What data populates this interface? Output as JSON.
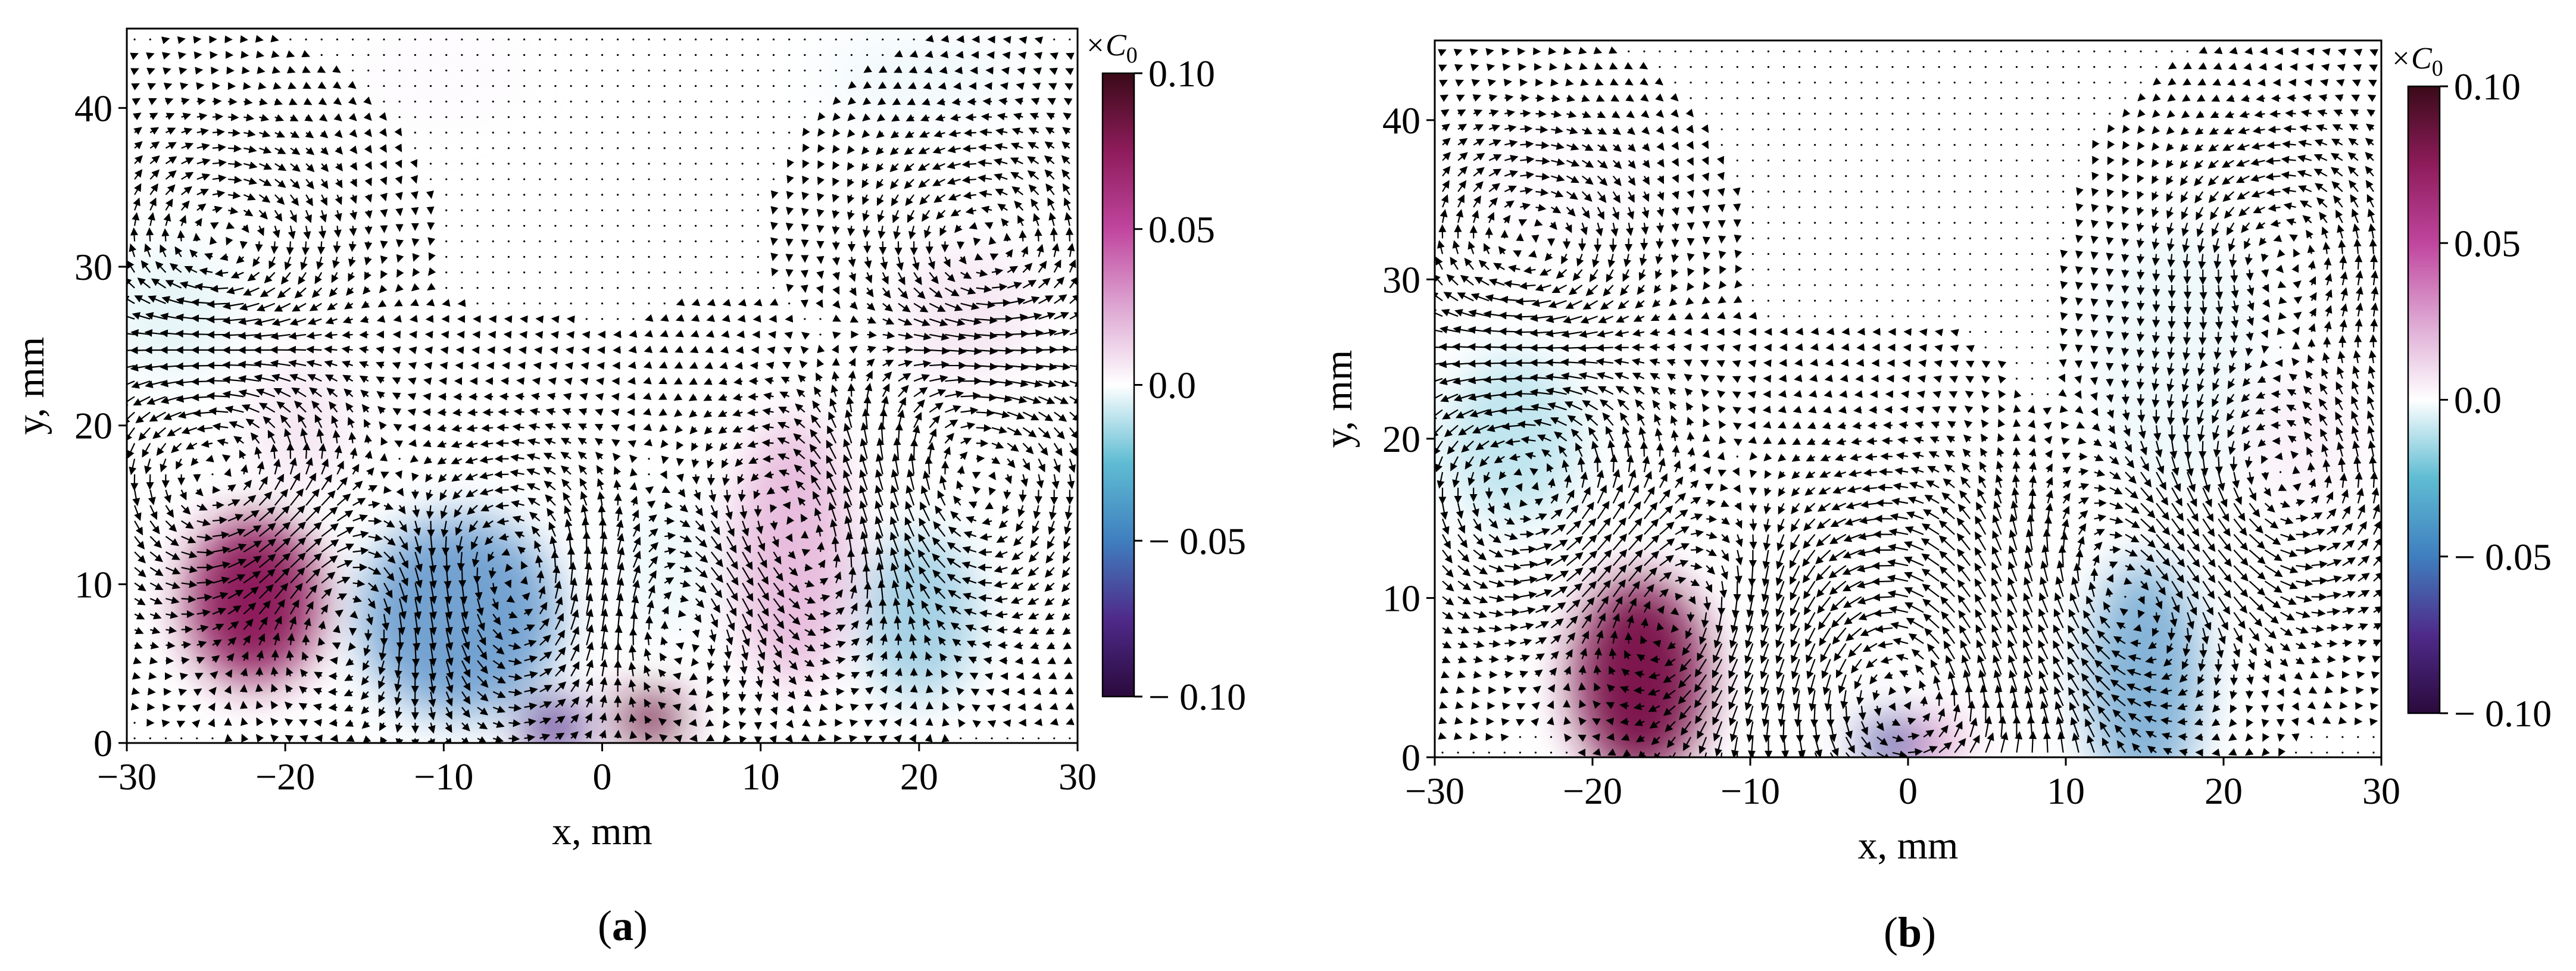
{
  "colors": {
    "colormap": [
      "#2a0a3c",
      "#4f2a8a",
      "#3f7fbf",
      "#5fbcd3",
      "#ffffff",
      "#dda6d2",
      "#c0459e",
      "#8e1c5b",
      "#3a0a18"
    ],
    "arrow": "#000000"
  },
  "colorbar_unit": "×C",
  "colorbar_unit_subscript": "0",
  "chart_data": [
    {
      "type": "heatmap",
      "overlay": "quiver",
      "caption": "(a)",
      "xlabel": "x, mm",
      "ylabel": "y, mm",
      "xlim": [
        -30,
        30
      ],
      "ylim": [
        0,
        45
      ],
      "xticks": [
        "−30",
        "−20",
        "−10",
        "0",
        "10",
        "20",
        "30"
      ],
      "yticks": [
        "0",
        "10",
        "20",
        "30",
        "40"
      ],
      "colorbar": {
        "range": [
          -0.1,
          0.1
        ],
        "ticks": [
          "0.10",
          "0.05",
          "0.0",
          "− 0.05",
          "− 0.10"
        ]
      },
      "blobs": [
        {
          "x": -22,
          "y": 9,
          "sx": 4.0,
          "sy": 5.0,
          "v": 0.075
        },
        {
          "x": -19,
          "y": 20,
          "sx": 3.0,
          "sy": 4.0,
          "v": 0.02
        },
        {
          "x": -27,
          "y": 27,
          "sx": 3.5,
          "sy": 4.0,
          "v": -0.015
        },
        {
          "x": -9,
          "y": 8,
          "sx": 6.0,
          "sy": 6.0,
          "v": -0.05
        },
        {
          "x": -3,
          "y": 1,
          "sx": 2.0,
          "sy": 1.5,
          "v": -0.075
        },
        {
          "x": 3,
          "y": 1.5,
          "sx": 2.0,
          "sy": 1.5,
          "v": 0.085
        },
        {
          "x": 12,
          "y": 12,
          "sx": 3.5,
          "sy": 8.0,
          "v": 0.035
        },
        {
          "x": 20,
          "y": 8,
          "sx": 3.5,
          "sy": 5.0,
          "v": -0.035
        },
        {
          "x": 23,
          "y": 27,
          "sx": 4.0,
          "sy": 4.0,
          "v": 0.02
        },
        {
          "x": 20,
          "y": 42,
          "sx": 6.0,
          "sy": 3.0,
          "v": -0.01
        },
        {
          "x": 4,
          "y": 11,
          "sx": 3.0,
          "sy": 4.0,
          "v": -0.012
        },
        {
          "x": -10,
          "y": 42,
          "sx": 5.0,
          "sy": 3.0,
          "v": 0.008
        }
      ],
      "vortices": [
        {
          "x": -24,
          "y": 17,
          "s": 1,
          "r": 6
        },
        {
          "x": -15,
          "y": 9,
          "s": -1,
          "r": 5
        },
        {
          "x": -6,
          "y": 10,
          "s": 1,
          "r": 6
        },
        {
          "x": 5,
          "y": 9,
          "s": -1,
          "r": 5
        },
        {
          "x": 13,
          "y": 13,
          "s": 1,
          "r": 6
        },
        {
          "x": 22,
          "y": 16,
          "s": -1,
          "r": 6
        },
        {
          "x": -24,
          "y": 31,
          "s": -1,
          "r": 5
        },
        {
          "x": 24,
          "y": 31,
          "s": 1,
          "r": 5
        }
      ]
    },
    {
      "type": "heatmap",
      "overlay": "quiver",
      "caption": "(b)",
      "xlabel": "x, mm",
      "ylabel": "y, mm",
      "xlim": [
        -30,
        30
      ],
      "ylim": [
        0,
        45
      ],
      "xticks": [
        "−30",
        "−20",
        "−10",
        "0",
        "10",
        "20",
        "30"
      ],
      "yticks": [
        "0",
        "10",
        "20",
        "30",
        "40"
      ],
      "colorbar": {
        "range": [
          -0.1,
          0.1
        ],
        "ticks": [
          "0.10",
          "0.05",
          "0.0",
          "− 0.05",
          "− 0.10"
        ]
      },
      "blobs": [
        {
          "x": -17,
          "y": 5,
          "sx": 4.0,
          "sy": 6.0,
          "v": 0.08
        },
        {
          "x": -25,
          "y": 20,
          "sx": 4.0,
          "sy": 5.0,
          "v": -0.025
        },
        {
          "x": -1,
          "y": 0.8,
          "sx": 2.0,
          "sy": 1.5,
          "v": -0.065
        },
        {
          "x": 2,
          "y": 1,
          "sx": 1.5,
          "sy": 1.0,
          "v": 0.05
        },
        {
          "x": 15,
          "y": 5,
          "sx": 3.5,
          "sy": 7.0,
          "v": -0.045
        },
        {
          "x": 17,
          "y": 25,
          "sx": 5.0,
          "sy": 8.0,
          "v": -0.012
        },
        {
          "x": 25,
          "y": 20,
          "sx": 3.5,
          "sy": 4.0,
          "v": 0.015
        },
        {
          "x": -22,
          "y": 36,
          "sx": 6.0,
          "sy": 4.0,
          "v": 0.008
        }
      ],
      "vortices": [
        {
          "x": -24,
          "y": 17,
          "s": 1,
          "r": 6
        },
        {
          "x": -14,
          "y": 9,
          "s": -1,
          "r": 5
        },
        {
          "x": 0,
          "y": 4,
          "s": 1,
          "r": 8
        },
        {
          "x": 13,
          "y": 10,
          "s": -1,
          "r": 6
        },
        {
          "x": 23,
          "y": 17,
          "s": 1,
          "r": 6
        },
        {
          "x": -24,
          "y": 32,
          "s": -1,
          "r": 5
        },
        {
          "x": 24,
          "y": 32,
          "s": 1,
          "r": 5
        }
      ]
    }
  ]
}
